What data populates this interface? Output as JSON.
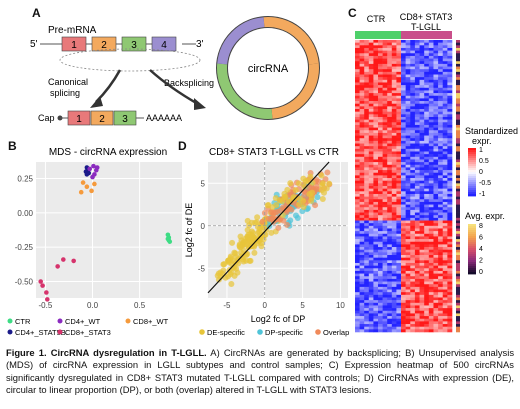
{
  "panel_a": {
    "letter": "A",
    "premrna_label": "Pre-mRNA",
    "five_prime": "5'",
    "three_prime": "3'",
    "exons": [
      "1",
      "2",
      "3",
      "4"
    ],
    "exon_colors": [
      "#e8797a",
      "#f3a95e",
      "#8fc873",
      "#9b8ed0"
    ],
    "canonical_label": "Canonical",
    "splicing_label": "splicing",
    "backsplicing_label": "Backsplicing",
    "circrna_label": "circRNA",
    "cap_label": "Cap",
    "polya_label": "AAAAAA"
  },
  "panel_b": {
    "letter": "B",
    "chart_data": {
      "type": "scatter",
      "title": "MDS - circRNA expression",
      "xlim": [
        -0.6,
        0.95
      ],
      "ylim": [
        -0.62,
        0.37
      ],
      "x_ticks": [
        "-0.5",
        "0.0",
        "0.5"
      ],
      "x_tick_values": [
        -0.5,
        0.0,
        0.5
      ],
      "y_ticks": [
        "0.25",
        "0.00",
        "-0.25",
        "-0.50"
      ],
      "y_tick_values": [
        0.25,
        0.0,
        -0.25,
        -0.5
      ],
      "series": [
        {
          "name": "CTR",
          "color": "#3ddc84",
          "points": [
            [
              0.8,
              -0.16
            ],
            [
              0.81,
              -0.18
            ],
            [
              0.81,
              -0.2
            ],
            [
              0.82,
              -0.21
            ],
            [
              0.8,
              -0.19
            ]
          ]
        },
        {
          "name": "CD4+_STAT5B",
          "color": "#1b1b8a",
          "points": [
            [
              -0.06,
              0.33
            ],
            [
              -0.05,
              0.31
            ],
            [
              -0.07,
              0.3
            ],
            [
              -0.04,
              0.29
            ],
            [
              -0.06,
              0.28
            ]
          ]
        },
        {
          "name": "CD4+_WT",
          "color": "#8b2bbf",
          "points": [
            [
              0.01,
              0.34
            ],
            [
              0.04,
              0.31
            ],
            [
              0.02,
              0.28
            ],
            [
              0.0,
              0.26
            ],
            [
              0.05,
              0.33
            ],
            [
              -0.03,
              0.32
            ]
          ]
        },
        {
          "name": "CD8+_WT",
          "color": "#f59a3c",
          "points": [
            [
              -0.1,
              0.22
            ],
            [
              -0.06,
              0.19
            ],
            [
              -0.01,
              0.16
            ],
            [
              0.02,
              0.21
            ],
            [
              -0.12,
              0.15
            ]
          ]
        },
        {
          "name": "CD8+_STAT3",
          "color": "#d6336c",
          "points": [
            [
              -0.31,
              -0.34
            ],
            [
              -0.37,
              -0.39
            ],
            [
              -0.55,
              -0.5
            ],
            [
              -0.53,
              -0.53
            ],
            [
              -0.49,
              -0.58
            ],
            [
              -0.48,
              -0.63
            ],
            [
              -0.2,
              -0.35
            ]
          ]
        }
      ]
    }
  },
  "panel_c": {
    "letter": "C",
    "groups": [
      "CTR",
      "CD8+ STAT3\nT-LGLL"
    ],
    "group_line1": [
      "CTR",
      "CD8+ STAT3"
    ],
    "group_line2": [
      "",
      "T-LGLL"
    ],
    "group_colors": [
      "#4ed06a",
      "#c94f8a"
    ],
    "std_legend_title": [
      "Standardized",
      "expr."
    ],
    "std_ticks": [
      "1",
      "0.5",
      "0",
      "-0.5",
      "-1"
    ],
    "avg_legend_title": [
      "Avg. expr."
    ],
    "avg_ticks": [
      "8",
      "6",
      "4",
      "2",
      "0"
    ],
    "chart_data": {
      "type": "heatmap",
      "rows": 500,
      "samples_ctr": 10,
      "samples_stat3": 11,
      "block_split_fraction": 0.62,
      "scale": [
        -1,
        1
      ]
    }
  },
  "panel_d": {
    "letter": "D",
    "chart_data": {
      "type": "scatter",
      "title": "CD8+ STAT3 T-LGLL vs CTR",
      "xlabel": "Log2 fc of DP",
      "ylabel": "Log2 fc of DE",
      "x_ticks": [
        "-5",
        "0",
        "5",
        "10"
      ],
      "x_tick_values": [
        -5,
        0,
        5,
        10
      ],
      "y_ticks": [
        "5",
        "0",
        "-5"
      ],
      "y_tick_values": [
        5,
        0,
        -5
      ],
      "xlim": [
        -7.5,
        11
      ],
      "ylim": [
        -8.5,
        7.5
      ],
      "legend_position": "bottom",
      "series": [
        {
          "name": "DE-specific",
          "color": "#e7c53a"
        },
        {
          "name": "DP-specific",
          "color": "#4fc4d8"
        },
        {
          "name": "Overlap",
          "color": "#f08a5a"
        }
      ]
    }
  },
  "caption": {
    "bold": "Figure 1. CircRNA dysregulation in T-LGLL.",
    "text": " A) CircRNAs are generated by backsplicing; B) Unsupervised analysis (MDS) of circRNA expression in LGLL subtypes and control samples; C) Expression heatmap of 500 circRNAs significantly dysregulated in CD8+ STAT3 mutated T-LGLL compared with controls; D) CircRNAs with expression (DE), circular to linear proportion (DP), or both (overlap) altered in T-LGLL with STAT3 lesions."
  }
}
